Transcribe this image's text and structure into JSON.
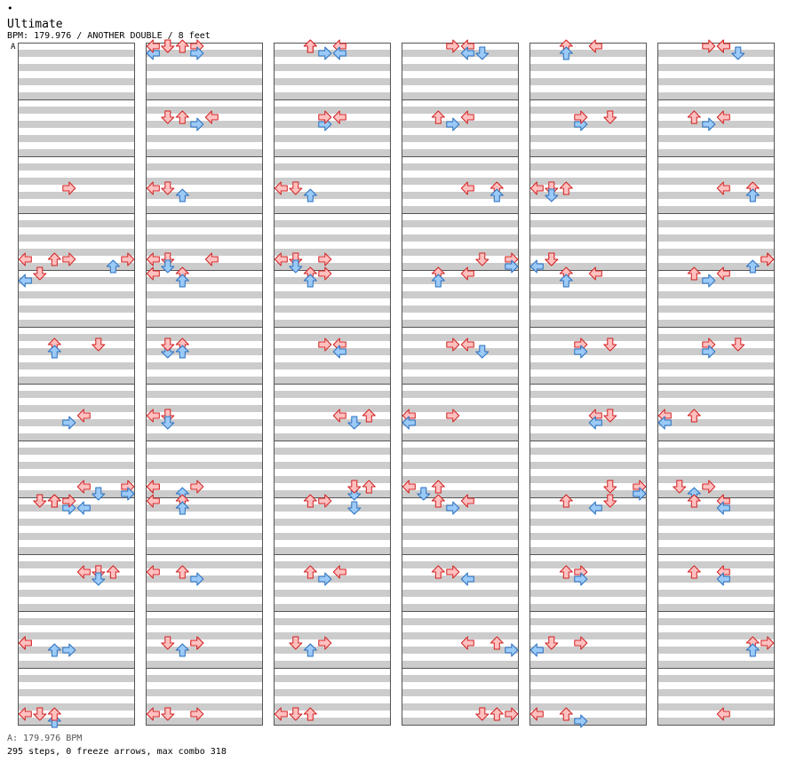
{
  "header": {
    "dot": "•",
    "title": "Ultimate",
    "subtitle": "BPM: 179.976 / ANOTHER DOUBLE / 8 feet",
    "bpm_marker": "A"
  },
  "footer": {
    "bpm_line": "A: 179.976 BPM",
    "stats": "295 steps, 0 freeze arrows, max combo 318"
  },
  "colors": {
    "stripe": "#cccccc",
    "red_fill": "#ffc0c0",
    "red_stroke": "#d02020",
    "blue_fill": "#9ccaf7",
    "blue_stroke": "#2a70c0",
    "measure_border": "#555555"
  },
  "chart_data": {
    "type": "step-chart",
    "columns": 6,
    "measures_per_column": 12,
    "lanes": 8,
    "rows_per_measure": 8,
    "lane_directions": [
      "left",
      "down",
      "up",
      "right",
      "left",
      "down",
      "up",
      "right"
    ],
    "note_kinds": [
      "4th",
      "8th"
    ],
    "notes": [
      [
        0,
        2,
        3,
        "4th"
      ],
      [
        0,
        3,
        0,
        "4th"
      ],
      [
        0,
        3,
        2,
        "4th"
      ],
      [
        0,
        3,
        6,
        "8th"
      ],
      [
        0,
        3,
        7,
        "4th"
      ],
      [
        0,
        3,
        3,
        "4th"
      ],
      [
        0,
        4,
        0,
        "8th"
      ],
      [
        0,
        4,
        1,
        "4th"
      ],
      [
        0,
        5,
        2,
        "4th"
      ],
      [
        0,
        5,
        2,
        "8th"
      ],
      [
        0,
        5,
        5,
        "4th"
      ],
      [
        0,
        6,
        4,
        "4th"
      ],
      [
        0,
        6,
        3,
        "8th"
      ],
      [
        0,
        7,
        7,
        "4th"
      ],
      [
        0,
        7,
        7,
        "8th"
      ],
      [
        0,
        7,
        4,
        "4th"
      ],
      [
        0,
        7,
        5,
        "8th"
      ],
      [
        0,
        8,
        2,
        "4th"
      ],
      [
        0,
        8,
        1,
        "4th"
      ],
      [
        0,
        8,
        3,
        "8th"
      ],
      [
        0,
        8,
        3,
        "4th"
      ],
      [
        0,
        8,
        2,
        "4th"
      ],
      [
        0,
        8,
        4,
        "8th"
      ],
      [
        0,
        9,
        4,
        "4th"
      ],
      [
        0,
        9,
        5,
        "4th"
      ],
      [
        0,
        9,
        5,
        "8th"
      ],
      [
        0,
        9,
        6,
        "4th"
      ],
      [
        0,
        10,
        0,
        "4th"
      ],
      [
        0,
        10,
        2,
        "8th"
      ],
      [
        0,
        10,
        0,
        "4th"
      ],
      [
        0,
        10,
        3,
        "8th"
      ],
      [
        0,
        11,
        0,
        "4th"
      ],
      [
        0,
        11,
        2,
        "8th"
      ],
      [
        0,
        11,
        1,
        "4th"
      ],
      [
        0,
        11,
        2,
        "4th"
      ],
      [
        1,
        0,
        3,
        "4th"
      ],
      [
        1,
        0,
        0,
        "8th"
      ],
      [
        1,
        0,
        0,
        "4th"
      ],
      [
        1,
        0,
        1,
        "4th"
      ],
      [
        1,
        0,
        3,
        "8th"
      ],
      [
        1,
        0,
        1,
        "4th"
      ],
      [
        1,
        0,
        2,
        "4th"
      ],
      [
        1,
        1,
        1,
        "4th"
      ],
      [
        1,
        1,
        2,
        "4th"
      ],
      [
        1,
        1,
        3,
        "8th"
      ],
      [
        1,
        1,
        4,
        "4th"
      ],
      [
        1,
        2,
        0,
        "4th"
      ],
      [
        1,
        2,
        1,
        "4th"
      ],
      [
        1,
        2,
        2,
        "8th"
      ],
      [
        1,
        3,
        1,
        "4th"
      ],
      [
        1,
        3,
        1,
        "8th"
      ],
      [
        1,
        3,
        0,
        "4th"
      ],
      [
        1,
        3,
        4,
        "4th"
      ],
      [
        1,
        4,
        2,
        "4th"
      ],
      [
        1,
        4,
        2,
        "8th"
      ],
      [
        1,
        4,
        0,
        "4th"
      ],
      [
        1,
        5,
        1,
        "8th"
      ],
      [
        1,
        5,
        1,
        "4th"
      ],
      [
        1,
        5,
        2,
        "4th"
      ],
      [
        1,
        5,
        2,
        "8th"
      ],
      [
        1,
        6,
        1,
        "4th"
      ],
      [
        1,
        6,
        1,
        "8th"
      ],
      [
        1,
        6,
        0,
        "4th"
      ],
      [
        1,
        7,
        0,
        "4th"
      ],
      [
        1,
        7,
        2,
        "8th"
      ],
      [
        1,
        7,
        3,
        "4th"
      ],
      [
        1,
        7,
        0,
        "4th"
      ],
      [
        1,
        8,
        2,
        "4th"
      ],
      [
        1,
        8,
        2,
        "8th"
      ],
      [
        1,
        8,
        0,
        "4th"
      ],
      [
        1,
        9,
        0,
        "4th"
      ],
      [
        1,
        9,
        2,
        "4th"
      ],
      [
        1,
        9,
        3,
        "8th"
      ],
      [
        1,
        10,
        3,
        "4th"
      ],
      [
        1,
        10,
        1,
        "4th"
      ],
      [
        1,
        10,
        2,
        "8th"
      ],
      [
        1,
        10,
        3,
        "4th"
      ],
      [
        1,
        11,
        0,
        "4th"
      ],
      [
        1,
        11,
        1,
        "4th"
      ],
      [
        1,
        11,
        3,
        "4th"
      ],
      [
        2,
        0,
        2,
        "4th"
      ],
      [
        2,
        0,
        3,
        "8th"
      ],
      [
        2,
        0,
        4,
        "4th"
      ],
      [
        2,
        0,
        4,
        "8th"
      ],
      [
        2,
        0,
        2,
        "4th"
      ],
      [
        2,
        1,
        4,
        "4th"
      ],
      [
        2,
        1,
        3,
        "8th"
      ],
      [
        2,
        1,
        3,
        "4th"
      ],
      [
        2,
        2,
        0,
        "4th"
      ],
      [
        2,
        2,
        1,
        "4th"
      ],
      [
        2,
        2,
        2,
        "8th"
      ],
      [
        2,
        3,
        1,
        "4th"
      ],
      [
        2,
        3,
        0,
        "4th"
      ],
      [
        2,
        3,
        1,
        "8th"
      ],
      [
        2,
        3,
        3,
        "4th"
      ],
      [
        2,
        4,
        2,
        "4th"
      ],
      [
        2,
        4,
        2,
        "8th"
      ],
      [
        2,
        4,
        3,
        "4th"
      ],
      [
        2,
        5,
        4,
        "4th"
      ],
      [
        2,
        5,
        4,
        "8th"
      ],
      [
        2,
        5,
        3,
        "4th"
      ],
      [
        2,
        6,
        4,
        "4th"
      ],
      [
        2,
        6,
        5,
        "8th"
      ],
      [
        2,
        6,
        6,
        "4th"
      ],
      [
        2,
        7,
        6,
        "4th"
      ],
      [
        2,
        7,
        5,
        "8th"
      ],
      [
        2,
        7,
        5,
        "4th"
      ],
      [
        2,
        8,
        3,
        "4th"
      ],
      [
        2,
        8,
        2,
        "4th"
      ],
      [
        2,
        8,
        5,
        "8th"
      ],
      [
        2,
        9,
        4,
        "4th"
      ],
      [
        2,
        9,
        2,
        "4th"
      ],
      [
        2,
        9,
        3,
        "8th"
      ],
      [
        2,
        10,
        3,
        "4th"
      ],
      [
        2,
        10,
        1,
        "4th"
      ],
      [
        2,
        10,
        2,
        "8th"
      ],
      [
        2,
        11,
        0,
        "4th"
      ],
      [
        2,
        11,
        2,
        "4th"
      ],
      [
        2,
        11,
        1,
        "4th"
      ],
      [
        3,
        0,
        3,
        "4th"
      ],
      [
        3,
        0,
        5,
        "8th"
      ],
      [
        3,
        0,
        4,
        "4th"
      ],
      [
        3,
        0,
        4,
        "8th"
      ],
      [
        3,
        1,
        4,
        "4th"
      ],
      [
        3,
        1,
        2,
        "4th"
      ],
      [
        3,
        1,
        3,
        "8th"
      ],
      [
        3,
        2,
        6,
        "4th"
      ],
      [
        3,
        2,
        6,
        "8th"
      ],
      [
        3,
        2,
        4,
        "4th"
      ],
      [
        3,
        3,
        7,
        "4th"
      ],
      [
        3,
        3,
        7,
        "8th"
      ],
      [
        3,
        3,
        5,
        "4th"
      ],
      [
        3,
        4,
        2,
        "4th"
      ],
      [
        3,
        4,
        2,
        "8th"
      ],
      [
        3,
        4,
        4,
        "4th"
      ],
      [
        3,
        5,
        4,
        "4th"
      ],
      [
        3,
        5,
        5,
        "8th"
      ],
      [
        3,
        5,
        3,
        "4th"
      ],
      [
        3,
        6,
        0,
        "4th"
      ],
      [
        3,
        6,
        0,
        "8th"
      ],
      [
        3,
        6,
        3,
        "4th"
      ],
      [
        3,
        7,
        2,
        "4th"
      ],
      [
        3,
        7,
        1,
        "8th"
      ],
      [
        3,
        7,
        0,
        "4th"
      ],
      [
        3,
        8,
        4,
        "4th"
      ],
      [
        3,
        8,
        2,
        "4th"
      ],
      [
        3,
        8,
        3,
        "8th"
      ],
      [
        3,
        9,
        3,
        "4th"
      ],
      [
        3,
        9,
        2,
        "4th"
      ],
      [
        3,
        9,
        4,
        "8th"
      ],
      [
        3,
        10,
        4,
        "4th"
      ],
      [
        3,
        10,
        6,
        "4th"
      ],
      [
        3,
        10,
        7,
        "8th"
      ],
      [
        3,
        11,
        5,
        "4th"
      ],
      [
        3,
        11,
        7,
        "4th"
      ],
      [
        3,
        11,
        6,
        "4th"
      ],
      [
        4,
        0,
        2,
        "4th"
      ],
      [
        4,
        0,
        2,
        "8th"
      ],
      [
        4,
        0,
        4,
        "4th"
      ],
      [
        4,
        1,
        5,
        "4th"
      ],
      [
        4,
        1,
        3,
        "8th"
      ],
      [
        4,
        1,
        3,
        "4th"
      ],
      [
        4,
        2,
        0,
        "4th"
      ],
      [
        4,
        2,
        1,
        "4th"
      ],
      [
        4,
        2,
        1,
        "8th"
      ],
      [
        4,
        2,
        2,
        "4th"
      ],
      [
        4,
        3,
        1,
        "4th"
      ],
      [
        4,
        3,
        0,
        "8th"
      ],
      [
        4,
        3,
        1,
        "4th"
      ],
      [
        4,
        4,
        2,
        "4th"
      ],
      [
        4,
        4,
        2,
        "8th"
      ],
      [
        4,
        4,
        4,
        "4th"
      ],
      [
        4,
        5,
        3,
        "4th"
      ],
      [
        4,
        5,
        3,
        "8th"
      ],
      [
        4,
        5,
        5,
        "4th"
      ],
      [
        4,
        6,
        4,
        "4th"
      ],
      [
        4,
        6,
        4,
        "8th"
      ],
      [
        4,
        6,
        5,
        "4th"
      ],
      [
        4,
        7,
        7,
        "4th"
      ],
      [
        4,
        7,
        7,
        "8th"
      ],
      [
        4,
        7,
        5,
        "4th"
      ],
      [
        4,
        8,
        5,
        "4th"
      ],
      [
        4,
        8,
        2,
        "4th"
      ],
      [
        4,
        8,
        4,
        "8th"
      ],
      [
        4,
        9,
        3,
        "4th"
      ],
      [
        4,
        9,
        3,
        "8th"
      ],
      [
        4,
        9,
        2,
        "4th"
      ],
      [
        4,
        10,
        1,
        "4th"
      ],
      [
        4,
        10,
        0,
        "8th"
      ],
      [
        4,
        10,
        3,
        "4th"
      ],
      [
        4,
        11,
        0,
        "4th"
      ],
      [
        4,
        11,
        2,
        "4th"
      ],
      [
        4,
        11,
        3,
        "8th"
      ],
      [
        5,
        0,
        3,
        "4th"
      ],
      [
        5,
        0,
        4,
        "4th"
      ],
      [
        5,
        0,
        5,
        "8th"
      ],
      [
        5,
        0,
        4,
        "4th"
      ],
      [
        5,
        1,
        4,
        "4th"
      ],
      [
        5,
        1,
        2,
        "4th"
      ],
      [
        5,
        1,
        3,
        "8th"
      ],
      [
        5,
        2,
        6,
        "4th"
      ],
      [
        5,
        2,
        6,
        "8th"
      ],
      [
        5,
        2,
        4,
        "4th"
      ],
      [
        5,
        3,
        7,
        "4th"
      ],
      [
        5,
        3,
        6,
        "8th"
      ],
      [
        5,
        3,
        7,
        "4th"
      ],
      [
        5,
        4,
        2,
        "4th"
      ],
      [
        5,
        4,
        3,
        "8th"
      ],
      [
        5,
        4,
        4,
        "4th"
      ],
      [
        5,
        5,
        3,
        "4th"
      ],
      [
        5,
        5,
        3,
        "8th"
      ],
      [
        5,
        5,
        5,
        "4th"
      ],
      [
        5,
        6,
        0,
        "4th"
      ],
      [
        5,
        6,
        2,
        "4th"
      ],
      [
        5,
        6,
        0,
        "8th"
      ],
      [
        5,
        7,
        3,
        "4th"
      ],
      [
        5,
        7,
        1,
        "4th"
      ],
      [
        5,
        7,
        2,
        "8th"
      ],
      [
        5,
        8,
        2,
        "4th"
      ],
      [
        5,
        8,
        4,
        "4th"
      ],
      [
        5,
        8,
        4,
        "8th"
      ],
      [
        5,
        9,
        4,
        "4th"
      ],
      [
        5,
        9,
        2,
        "4th"
      ],
      [
        5,
        9,
        4,
        "8th"
      ],
      [
        5,
        10,
        6,
        "4th"
      ],
      [
        5,
        10,
        6,
        "8th"
      ],
      [
        5,
        10,
        7,
        "4th"
      ],
      [
        5,
        11,
        4,
        "4th"
      ]
    ]
  }
}
